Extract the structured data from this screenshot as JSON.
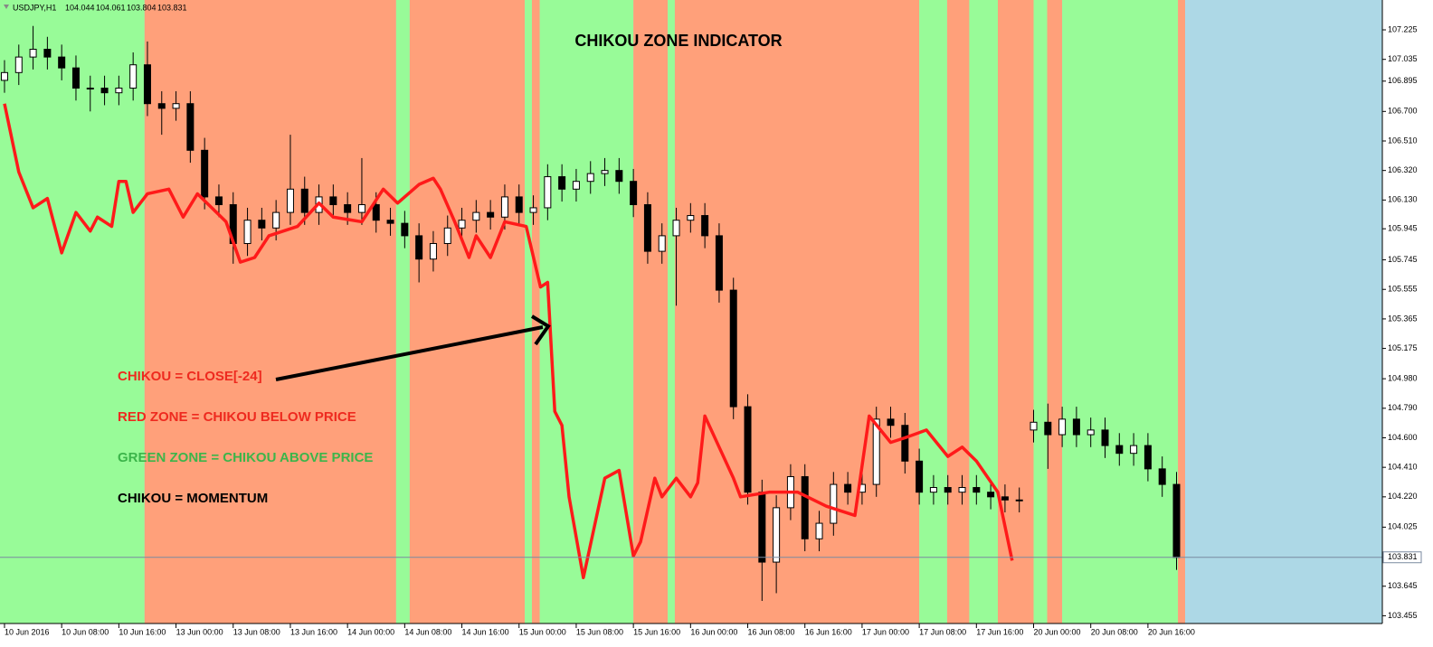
{
  "chart_data": {
    "type": "candlestick",
    "title": "CHIKOU ZONE INDICATOR",
    "header": {
      "symbol": "USDJPY,H1",
      "ohlc": [
        104.044,
        104.061,
        103.804,
        103.831
      ]
    },
    "annotations": [
      {
        "text": "CHIKOU = CLOSE[-24]",
        "color": "#ee2a1f"
      },
      {
        "text": "RED ZONE = CHIKOU BELOW PRICE",
        "color": "#ee2a1f"
      },
      {
        "text": "GREEN ZONE = CHIKOU ABOVE PRICE",
        "color": "#3cb54a"
      },
      {
        "text": "CHIKOU = MOMENTUM",
        "color": "#000000"
      }
    ],
    "xlim": [
      -0.63,
      192.8
    ],
    "ylim": [
      103.405,
      107.417
    ],
    "xticks": [
      {
        "value": 0,
        "label": "10 Jun 2016"
      },
      {
        "value": 8,
        "label": "10 Jun 08:00"
      },
      {
        "value": 16,
        "label": "10 Jun 16:00"
      },
      {
        "value": 24,
        "label": "13 Jun 00:00"
      },
      {
        "value": 32,
        "label": "13 Jun 08:00"
      },
      {
        "value": 40,
        "label": "13 Jun 16:00"
      },
      {
        "value": 48,
        "label": "14 Jun 00:00"
      },
      {
        "value": 56,
        "label": "14 Jun 08:00"
      },
      {
        "value": 64,
        "label": "14 Jun 16:00"
      },
      {
        "value": 72,
        "label": "15 Jun 00:00"
      },
      {
        "value": 80,
        "label": "15 Jun 08:00"
      },
      {
        "value": 88,
        "label": "15 Jun 16:00"
      },
      {
        "value": 96,
        "label": "16 Jun 00:00"
      },
      {
        "value": 104,
        "label": "16 Jun 08:00"
      },
      {
        "value": 112,
        "label": "16 Jun 16:00"
      },
      {
        "value": 120,
        "label": "17 Jun 00:00"
      },
      {
        "value": 128,
        "label": "17 Jun 08:00"
      },
      {
        "value": 136,
        "label": "17 Jun 16:00"
      },
      {
        "value": 144,
        "label": "20 Jun 00:00"
      },
      {
        "value": 152,
        "label": "20 Jun 08:00"
      },
      {
        "value": 160,
        "label": "20 Jun 16:00"
      }
    ],
    "yticks": [
      107.225,
      107.035,
      106.895,
      {
        "value": 106.7,
        "label": "106.700"
      },
      {
        "value": 106.51,
        "label": "106.510"
      },
      {
        "value": 106.32,
        "label": "106.320"
      },
      {
        "value": 106.13,
        "label": "106.130"
      },
      105.945,
      105.745,
      105.555,
      105.365,
      105.175,
      {
        "value": 104.98,
        "label": "104.980"
      },
      {
        "value": 104.79,
        "label": "104.790"
      },
      {
        "value": 104.6,
        "label": "104.600"
      },
      {
        "value": 104.41,
        "label": "104.410"
      },
      {
        "value": 104.22,
        "label": "104.220"
      },
      104.025,
      103.645,
      103.455
    ],
    "current_price": 103.831,
    "zones": [
      {
        "from": -0.63,
        "to": 19.6,
        "color": "#98fb98"
      },
      {
        "from": 19.6,
        "to": 54.8,
        "color": "#ffa07a"
      },
      {
        "from": 54.8,
        "to": 56.7,
        "color": "#98fb98"
      },
      {
        "from": 56.7,
        "to": 72.8,
        "color": "#ffa07a"
      },
      {
        "from": 72.8,
        "to": 73.8,
        "color": "#98fb98"
      },
      {
        "from": 73.8,
        "to": 74.9,
        "color": "#ffa07a"
      },
      {
        "from": 74.9,
        "to": 88,
        "color": "#98fb98"
      },
      {
        "from": 88,
        "to": 92.8,
        "color": "#ffa07a"
      },
      {
        "from": 92.8,
        "to": 93.8,
        "color": "#98fb98"
      },
      {
        "from": 93.8,
        "to": 128,
        "color": "#ffa07a"
      },
      {
        "from": 128,
        "to": 131.9,
        "color": "#98fb98"
      },
      {
        "from": 131.9,
        "to": 135,
        "color": "#ffa07a"
      },
      {
        "from": 135,
        "to": 139,
        "color": "#98fb98"
      },
      {
        "from": 139,
        "to": 144,
        "color": "#ffa07a"
      },
      {
        "from": 144,
        "to": 145.9,
        "color": "#98fb98"
      },
      {
        "from": 145.9,
        "to": 148,
        "color": "#ffa07a"
      },
      {
        "from": 148,
        "to": 164.2,
        "color": "#98fb98"
      },
      {
        "from": 164.2,
        "to": 165.2,
        "color": "#ffa07a"
      }
    ],
    "x": [
      0,
      2,
      4,
      6,
      8,
      10,
      12,
      14,
      16,
      18,
      20,
      22,
      24,
      26,
      28,
      30,
      32,
      34,
      36,
      38,
      40,
      42,
      44,
      46,
      48,
      50,
      52,
      54,
      56,
      58,
      60,
      62,
      64,
      66,
      68,
      70,
      72,
      74,
      76,
      78,
      80,
      82,
      84,
      86,
      88,
      90,
      92,
      94,
      96,
      98,
      100,
      102,
      104,
      106,
      108,
      110,
      112,
      114,
      116,
      118,
      120,
      122,
      124,
      126,
      128,
      130,
      132,
      134,
      136,
      138,
      140,
      142,
      144,
      146,
      148,
      150,
      152,
      154,
      156,
      158,
      160,
      162,
      164
    ],
    "open": [
      106.9,
      106.95,
      107.05,
      107.1,
      107.05,
      106.98,
      106.85,
      106.85,
      106.82,
      106.85,
      107.0,
      106.75,
      106.72,
      106.75,
      106.45,
      106.15,
      106.1,
      105.85,
      106.0,
      105.95,
      106.05,
      106.2,
      106.05,
      106.15,
      106.1,
      106.05,
      106.1,
      106.0,
      105.98,
      105.9,
      105.75,
      105.85,
      105.95,
      106.0,
      106.05,
      106.02,
      106.15,
      106.05,
      106.08,
      106.28,
      106.2,
      106.25,
      106.3,
      106.32,
      106.25,
      106.1,
      105.8,
      105.9,
      106.0,
      106.03,
      105.9,
      105.55,
      104.8,
      104.25,
      103.8,
      104.15,
      104.35,
      103.95,
      104.05,
      104.3,
      104.25,
      104.3,
      104.72,
      104.68,
      104.45,
      104.25,
      104.28,
      104.25,
      104.28,
      104.25,
      104.22,
      104.2,
      104.65,
      104.7,
      104.62,
      104.72,
      104.62,
      104.65,
      104.55,
      104.5,
      104.55,
      104.4,
      104.3
    ],
    "high": [
      107.03,
      107.13,
      107.25,
      107.18,
      107.13,
      107.06,
      106.93,
      106.93,
      106.93,
      107.08,
      107.15,
      106.83,
      106.83,
      106.83,
      106.53,
      106.23,
      106.18,
      106.08,
      106.08,
      106.13,
      106.55,
      106.28,
      106.23,
      106.23,
      106.18,
      106.4,
      106.18,
      106.08,
      106.06,
      105.98,
      105.93,
      106.03,
      106.08,
      106.13,
      106.13,
      106.23,
      106.23,
      106.16,
      106.36,
      106.36,
      106.33,
      106.38,
      106.4,
      106.4,
      106.33,
      106.18,
      105.98,
      106.08,
      106.11,
      106.11,
      105.98,
      105.63,
      104.88,
      104.33,
      104.23,
      104.43,
      104.43,
      104.13,
      104.38,
      104.38,
      104.38,
      104.8,
      104.8,
      104.76,
      104.53,
      104.36,
      104.36,
      104.36,
      104.36,
      104.33,
      104.3,
      104.28,
      104.78,
      104.82,
      104.8,
      104.8,
      104.73,
      104.73,
      104.63,
      104.63,
      104.63,
      104.48,
      104.38
    ],
    "low": [
      106.82,
      106.87,
      106.97,
      106.97,
      106.9,
      106.77,
      106.7,
      106.74,
      106.74,
      106.77,
      106.67,
      106.55,
      106.64,
      106.37,
      106.07,
      106.02,
      105.72,
      105.77,
      105.87,
      105.87,
      105.97,
      105.97,
      105.97,
      106.02,
      105.97,
      105.97,
      105.92,
      105.9,
      105.82,
      105.6,
      105.67,
      105.77,
      105.87,
      105.92,
      105.94,
      105.94,
      105.97,
      105.97,
      106.0,
      106.12,
      106.12,
      106.17,
      106.22,
      106.17,
      106.02,
      105.72,
      105.72,
      105.45,
      105.92,
      105.82,
      105.47,
      104.72,
      104.17,
      103.55,
      103.6,
      104.07,
      103.87,
      103.87,
      103.97,
      104.17,
      104.17,
      104.22,
      104.6,
      104.37,
      104.17,
      104.17,
      104.17,
      104.17,
      104.17,
      104.14,
      104.12,
      104.12,
      104.57,
      104.4,
      104.54,
      104.54,
      104.54,
      104.47,
      104.42,
      104.42,
      104.32,
      104.22,
      103.75
    ],
    "close": [
      106.95,
      107.05,
      107.1,
      107.05,
      106.98,
      106.85,
      106.85,
      106.82,
      106.85,
      107.0,
      106.75,
      106.72,
      106.75,
      106.45,
      106.15,
      106.1,
      105.85,
      106.0,
      105.95,
      106.05,
      106.2,
      106.05,
      106.15,
      106.1,
      106.05,
      106.1,
      106.0,
      105.98,
      105.9,
      105.75,
      105.85,
      105.95,
      106.0,
      106.05,
      106.02,
      106.15,
      106.05,
      106.08,
      106.28,
      106.2,
      106.25,
      106.3,
      106.32,
      106.25,
      106.1,
      105.8,
      105.9,
      106.0,
      106.03,
      105.9,
      105.55,
      104.8,
      104.25,
      103.8,
      104.15,
      104.35,
      103.95,
      104.05,
      104.3,
      104.25,
      104.3,
      104.72,
      104.68,
      104.45,
      104.25,
      104.28,
      104.25,
      104.28,
      104.25,
      104.22,
      104.2,
      104.2,
      104.7,
      104.62,
      104.72,
      104.62,
      104.65,
      104.55,
      104.5,
      104.55,
      104.4,
      104.3,
      103.83
    ],
    "chikou": {
      "color": "#ff1a1a",
      "x": [
        0,
        2,
        4,
        6,
        8,
        10,
        12,
        13,
        15,
        16,
        17,
        18,
        20,
        23,
        25,
        27,
        31,
        33,
        35,
        37,
        41,
        44,
        46,
        50,
        53,
        55,
        58,
        60,
        61,
        63,
        65,
        66,
        68,
        70,
        73,
        75,
        76,
        77,
        78,
        79,
        81,
        84,
        86,
        88,
        89,
        91,
        92,
        94,
        96,
        97,
        98,
        100,
        102,
        103,
        107,
        111,
        115,
        119,
        121,
        124,
        126,
        129,
        132,
        134,
        136,
        139,
        141
      ],
      "values": [
        106.75,
        106.31,
        106.08,
        106.14,
        105.79,
        106.05,
        105.93,
        106.02,
        105.96,
        106.25,
        106.25,
        106.05,
        106.17,
        106.2,
        106.02,
        106.17,
        105.99,
        105.73,
        105.76,
        105.9,
        105.96,
        106.11,
        106.02,
        105.99,
        106.2,
        106.11,
        106.23,
        106.27,
        106.2,
        105.99,
        105.76,
        105.9,
        105.76,
        105.99,
        105.96,
        105.57,
        105.6,
        104.77,
        104.68,
        104.22,
        103.7,
        104.34,
        104.39,
        103.84,
        103.93,
        104.34,
        104.22,
        104.34,
        104.22,
        104.31,
        104.74,
        104.54,
        104.34,
        104.22,
        104.25,
        104.25,
        104.16,
        104.1,
        104.74,
        104.57,
        104.6,
        104.65,
        104.48,
        104.54,
        104.45,
        104.25,
        103.81
      ]
    }
  }
}
